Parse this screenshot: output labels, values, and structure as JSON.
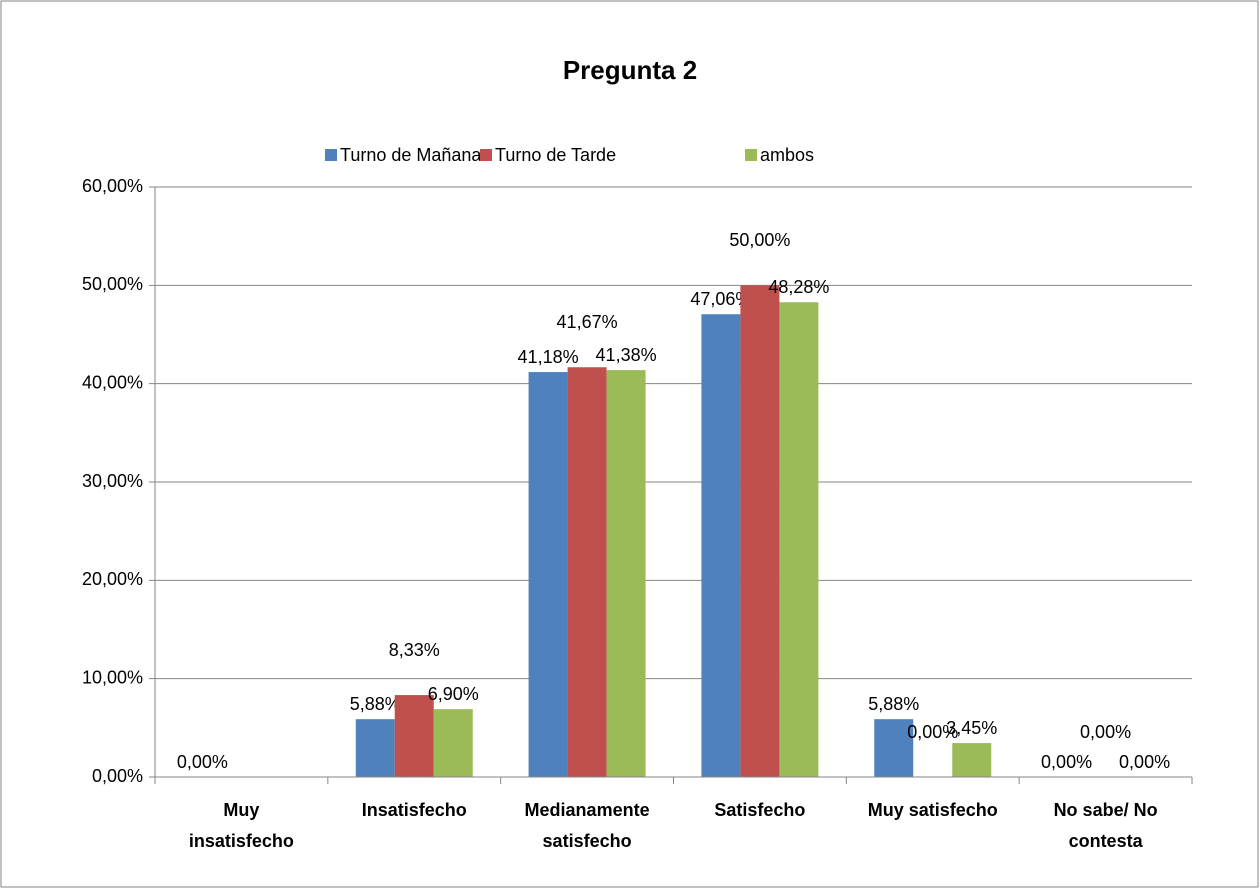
{
  "chart_data": {
    "type": "bar",
    "title": "Pregunta 2",
    "categories": [
      "Muy insatisfecho",
      "Insatisfecho",
      "Medianamente satisfecho",
      "Satisfecho",
      "Muy satisfecho",
      "No sabe/ No contesta"
    ],
    "series": [
      {
        "name": "Turno de Mañana",
        "color": "#4f81bd",
        "values": [
          0,
          5.88,
          41.18,
          47.06,
          5.88,
          0
        ],
        "value_labels": [
          "0,00%",
          "5,88%",
          "41,18%",
          "47,06%",
          "5,88%",
          "0,00%"
        ]
      },
      {
        "name": "Turno de Tarde",
        "color": "#c0504d",
        "values": [
          null,
          8.33,
          41.67,
          50,
          0,
          0
        ],
        "value_labels": [
          null,
          "8,33%",
          "41,67%",
          "50,00%",
          "0,00%",
          "0,00%"
        ]
      },
      {
        "name": "ambos",
        "color": "#9bbb59",
        "values": [
          null,
          6.9,
          41.38,
          48.28,
          3.45,
          0
        ],
        "value_labels": [
          null,
          "6,90%",
          "41,38%",
          "48,28%",
          "3,45%",
          "0,00%"
        ]
      }
    ],
    "ylim": [
      0,
      60
    ],
    "yticks": [
      {
        "value": 0,
        "label": "0,00%"
      },
      {
        "value": 10,
        "label": "10,00%"
      },
      {
        "value": 20,
        "label": "20,00%"
      },
      {
        "value": 30,
        "label": "30,00%"
      },
      {
        "value": 40,
        "label": "40,00%"
      },
      {
        "value": 50,
        "label": "50,00%"
      },
      {
        "value": 60,
        "label": "60,00%"
      }
    ],
    "grid": true,
    "legend": "top"
  }
}
